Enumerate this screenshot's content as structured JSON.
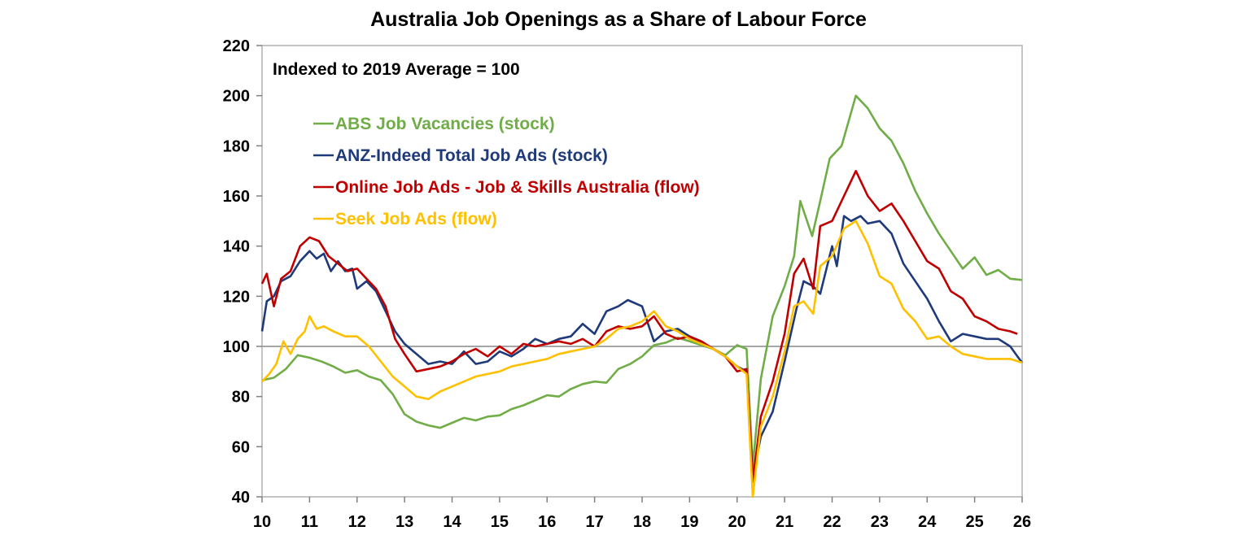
{
  "chart_data": {
    "type": "line",
    "title": "Australia Job Openings as a Share of Labour Force",
    "subtitle": "Indexed to 2019 Average = 100",
    "xlabel": "",
    "ylabel": "",
    "xlim": [
      10,
      26
    ],
    "ylim": [
      40,
      220
    ],
    "x_ticks": [
      "10",
      "11",
      "12",
      "13",
      "14",
      "15",
      "16",
      "17",
      "18",
      "19",
      "20",
      "21",
      "22",
      "23",
      "24",
      "25",
      "26"
    ],
    "y_ticks": [
      "40",
      "60",
      "80",
      "100",
      "120",
      "140",
      "160",
      "180",
      "200",
      "220"
    ],
    "reference_line": 100,
    "grid": false,
    "legend_position": "top-left",
    "series": [
      {
        "name": "ABS Job Vacancies (stock)",
        "color": "#70ad47",
        "points": [
          [
            10.0,
            86.5
          ],
          [
            10.25,
            87.5
          ],
          [
            10.5,
            91
          ],
          [
            10.75,
            96.5
          ],
          [
            11.0,
            95.5
          ],
          [
            11.25,
            94
          ],
          [
            11.5,
            92
          ],
          [
            11.75,
            89.5
          ],
          [
            12.0,
            90.5
          ],
          [
            12.25,
            88
          ],
          [
            12.5,
            86.5
          ],
          [
            12.75,
            81
          ],
          [
            13.0,
            73
          ],
          [
            13.25,
            70
          ],
          [
            13.5,
            68.5
          ],
          [
            13.75,
            67.5
          ],
          [
            14.0,
            69.5
          ],
          [
            14.25,
            71.5
          ],
          [
            14.5,
            70.5
          ],
          [
            14.75,
            72
          ],
          [
            15.0,
            72.5
          ],
          [
            15.25,
            75
          ],
          [
            15.5,
            76.5
          ],
          [
            15.75,
            78.5
          ],
          [
            16.0,
            80.5
          ],
          [
            16.25,
            80
          ],
          [
            16.5,
            83
          ],
          [
            16.75,
            85
          ],
          [
            17.0,
            86
          ],
          [
            17.25,
            85.5
          ],
          [
            17.5,
            91
          ],
          [
            17.75,
            93
          ],
          [
            18.0,
            96
          ],
          [
            18.25,
            100.5
          ],
          [
            18.5,
            101.5
          ],
          [
            18.75,
            103.5
          ],
          [
            19.0,
            102
          ],
          [
            19.25,
            100.5
          ],
          [
            19.5,
            99
          ],
          [
            19.75,
            96.5
          ],
          [
            20.0,
            100.5
          ],
          [
            20.2,
            99
          ],
          [
            20.33,
            52
          ],
          [
            20.5,
            87
          ],
          [
            20.75,
            112
          ],
          [
            21.0,
            124
          ],
          [
            21.2,
            136
          ],
          [
            21.33,
            158
          ],
          [
            21.58,
            144
          ],
          [
            21.75,
            158
          ],
          [
            21.95,
            175
          ],
          [
            22.2,
            180
          ],
          [
            22.5,
            200
          ],
          [
            22.75,
            195
          ],
          [
            23.0,
            187
          ],
          [
            23.25,
            182
          ],
          [
            23.5,
            173
          ],
          [
            23.75,
            162
          ],
          [
            24.0,
            153
          ],
          [
            24.25,
            145
          ],
          [
            24.5,
            138
          ],
          [
            24.75,
            131
          ],
          [
            25.0,
            135.5
          ],
          [
            25.25,
            128.5
          ],
          [
            25.5,
            130.5
          ],
          [
            25.75,
            127
          ],
          [
            26.0,
            126.5
          ]
        ]
      },
      {
        "name": "ANZ-Indeed Total Job Ads (stock)",
        "color": "#1f3a7a",
        "points": [
          [
            10.0,
            106
          ],
          [
            10.1,
            118
          ],
          [
            10.25,
            120
          ],
          [
            10.4,
            126
          ],
          [
            10.6,
            128
          ],
          [
            10.8,
            134
          ],
          [
            11.0,
            138
          ],
          [
            11.15,
            135
          ],
          [
            11.3,
            137
          ],
          [
            11.45,
            130
          ],
          [
            11.6,
            134
          ],
          [
            11.75,
            130
          ],
          [
            11.9,
            131
          ],
          [
            12.0,
            123
          ],
          [
            12.2,
            126
          ],
          [
            12.4,
            122
          ],
          [
            12.6,
            114
          ],
          [
            12.8,
            106
          ],
          [
            13.0,
            101
          ],
          [
            13.25,
            97
          ],
          [
            13.5,
            93
          ],
          [
            13.75,
            94
          ],
          [
            14.0,
            93
          ],
          [
            14.25,
            98
          ],
          [
            14.5,
            93
          ],
          [
            14.75,
            94
          ],
          [
            15.0,
            98
          ],
          [
            15.25,
            96
          ],
          [
            15.5,
            99
          ],
          [
            15.75,
            103
          ],
          [
            16.0,
            101
          ],
          [
            16.25,
            103
          ],
          [
            16.5,
            104
          ],
          [
            16.75,
            109
          ],
          [
            17.0,
            105
          ],
          [
            17.25,
            114
          ],
          [
            17.5,
            116
          ],
          [
            17.7,
            118.5
          ],
          [
            18.0,
            116
          ],
          [
            18.25,
            102
          ],
          [
            18.5,
            106
          ],
          [
            18.75,
            107
          ],
          [
            19.0,
            104
          ],
          [
            19.25,
            101
          ],
          [
            19.5,
            99
          ],
          [
            19.75,
            96
          ],
          [
            20.0,
            92
          ],
          [
            20.2,
            90
          ],
          [
            20.33,
            48
          ],
          [
            20.5,
            64
          ],
          [
            20.75,
            74
          ],
          [
            21.0,
            94
          ],
          [
            21.25,
            115
          ],
          [
            21.4,
            126
          ],
          [
            21.6,
            124
          ],
          [
            21.75,
            121
          ],
          [
            22.0,
            140
          ],
          [
            22.1,
            132
          ],
          [
            22.25,
            152
          ],
          [
            22.4,
            150
          ],
          [
            22.6,
            152
          ],
          [
            22.75,
            149
          ],
          [
            23.0,
            150
          ],
          [
            23.25,
            145
          ],
          [
            23.5,
            133
          ],
          [
            23.75,
            126
          ],
          [
            24.0,
            119
          ],
          [
            24.25,
            110
          ],
          [
            24.5,
            102
          ],
          [
            24.75,
            105
          ],
          [
            25.0,
            104
          ],
          [
            25.25,
            103
          ],
          [
            25.5,
            103
          ],
          [
            25.75,
            100
          ],
          [
            25.9,
            96
          ],
          [
            26.0,
            93.5
          ]
        ]
      },
      {
        "name": "Online Job Ads - Job & Skills Australia (flow)",
        "color": "#c00000",
        "points": [
          [
            10.0,
            125
          ],
          [
            10.1,
            129
          ],
          [
            10.25,
            116
          ],
          [
            10.4,
            127
          ],
          [
            10.6,
            130
          ],
          [
            10.8,
            140
          ],
          [
            11.0,
            143.5
          ],
          [
            11.2,
            142
          ],
          [
            11.4,
            136
          ],
          [
            11.6,
            133
          ],
          [
            11.8,
            130
          ],
          [
            12.0,
            131
          ],
          [
            12.2,
            127
          ],
          [
            12.4,
            123
          ],
          [
            12.6,
            116
          ],
          [
            12.8,
            103
          ],
          [
            13.0,
            97
          ],
          [
            13.25,
            90
          ],
          [
            13.5,
            91
          ],
          [
            13.75,
            92
          ],
          [
            14.0,
            94
          ],
          [
            14.25,
            97
          ],
          [
            14.5,
            99
          ],
          [
            14.75,
            96
          ],
          [
            15.0,
            100
          ],
          [
            15.25,
            97
          ],
          [
            15.5,
            101
          ],
          [
            15.75,
            100
          ],
          [
            16.0,
            101
          ],
          [
            16.25,
            102
          ],
          [
            16.5,
            101
          ],
          [
            16.75,
            103
          ],
          [
            17.0,
            100
          ],
          [
            17.25,
            106
          ],
          [
            17.5,
            108
          ],
          [
            17.75,
            107
          ],
          [
            18.0,
            108
          ],
          [
            18.25,
            112
          ],
          [
            18.5,
            105
          ],
          [
            18.75,
            103
          ],
          [
            19.0,
            104
          ],
          [
            19.25,
            102
          ],
          [
            19.5,
            99
          ],
          [
            19.75,
            96
          ],
          [
            20.0,
            90
          ],
          [
            20.2,
            91
          ],
          [
            20.33,
            46
          ],
          [
            20.5,
            72
          ],
          [
            20.75,
            86
          ],
          [
            21.0,
            105
          ],
          [
            21.2,
            129
          ],
          [
            21.4,
            135
          ],
          [
            21.6,
            123
          ],
          [
            21.75,
            148
          ],
          [
            22.0,
            150
          ],
          [
            22.25,
            160
          ],
          [
            22.5,
            170
          ],
          [
            22.75,
            160
          ],
          [
            23.0,
            154
          ],
          [
            23.25,
            157
          ],
          [
            23.5,
            150
          ],
          [
            23.75,
            142
          ],
          [
            24.0,
            134
          ],
          [
            24.25,
            131
          ],
          [
            24.5,
            122
          ],
          [
            24.75,
            119
          ],
          [
            25.0,
            112
          ],
          [
            25.25,
            110
          ],
          [
            25.5,
            107
          ],
          [
            25.75,
            106
          ],
          [
            25.9,
            105
          ]
        ]
      },
      {
        "name": "Seek Job Ads (flow)",
        "color": "#ffc000",
        "points": [
          [
            10.0,
            86
          ],
          [
            10.15,
            89
          ],
          [
            10.3,
            93
          ],
          [
            10.45,
            102
          ],
          [
            10.6,
            97
          ],
          [
            10.75,
            103
          ],
          [
            10.9,
            106
          ],
          [
            11.0,
            112
          ],
          [
            11.15,
            107
          ],
          [
            11.3,
            108
          ],
          [
            11.5,
            106
          ],
          [
            11.75,
            104
          ],
          [
            12.0,
            104
          ],
          [
            12.25,
            100
          ],
          [
            12.5,
            94
          ],
          [
            12.75,
            88
          ],
          [
            13.0,
            84
          ],
          [
            13.25,
            80
          ],
          [
            13.5,
            79
          ],
          [
            13.75,
            82
          ],
          [
            14.0,
            84
          ],
          [
            14.25,
            86
          ],
          [
            14.5,
            88
          ],
          [
            14.75,
            89
          ],
          [
            15.0,
            90
          ],
          [
            15.25,
            92
          ],
          [
            15.5,
            93
          ],
          [
            15.75,
            94
          ],
          [
            16.0,
            95
          ],
          [
            16.25,
            97
          ],
          [
            16.5,
            98
          ],
          [
            16.75,
            99
          ],
          [
            17.0,
            100
          ],
          [
            17.25,
            103
          ],
          [
            17.5,
            107
          ],
          [
            17.75,
            108
          ],
          [
            18.0,
            110
          ],
          [
            18.25,
            114
          ],
          [
            18.5,
            108
          ],
          [
            18.75,
            106
          ],
          [
            19.0,
            103
          ],
          [
            19.25,
            101
          ],
          [
            19.5,
            99
          ],
          [
            19.75,
            96
          ],
          [
            20.0,
            92
          ],
          [
            20.2,
            89
          ],
          [
            20.33,
            40
          ],
          [
            20.5,
            68
          ],
          [
            20.75,
            80
          ],
          [
            21.0,
            98
          ],
          [
            21.2,
            116
          ],
          [
            21.4,
            118
          ],
          [
            21.6,
            113
          ],
          [
            21.75,
            132
          ],
          [
            22.0,
            136
          ],
          [
            22.25,
            147
          ],
          [
            22.5,
            150
          ],
          [
            22.75,
            141
          ],
          [
            23.0,
            128
          ],
          [
            23.25,
            125
          ],
          [
            23.5,
            115
          ],
          [
            23.75,
            110
          ],
          [
            24.0,
            103
          ],
          [
            24.25,
            104
          ],
          [
            24.5,
            100
          ],
          [
            24.75,
            97
          ],
          [
            25.0,
            96
          ],
          [
            25.25,
            95
          ],
          [
            25.5,
            95
          ],
          [
            25.75,
            95
          ],
          [
            26.0,
            93.5
          ]
        ]
      }
    ]
  }
}
